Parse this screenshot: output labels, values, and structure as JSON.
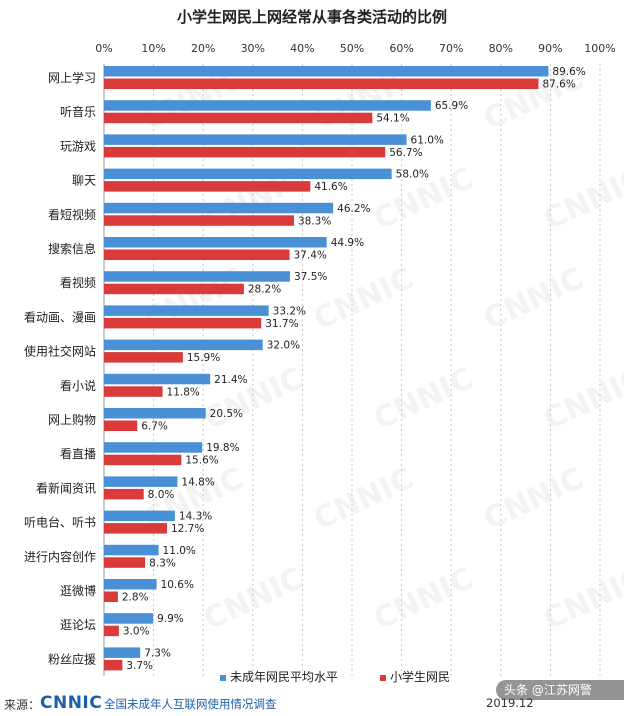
{
  "chart_data": {
    "type": "bar",
    "orientation": "horizontal",
    "title": "小学生网民上网经常从事各类活动的比例",
    "categories": [
      "网上学习",
      "听音乐",
      "玩游戏",
      "聊天",
      "看短视频",
      "搜索信息",
      "看视频",
      "看动画、漫画",
      "使用社交网站",
      "看小说",
      "网上购物",
      "看直播",
      "看新闻资讯",
      "听电台、听书",
      "进行内容创作",
      "逛微博",
      "逛论坛",
      "粉丝应援"
    ],
    "series": [
      {
        "name": "未成年网民平均水平",
        "color": "#4a90d6",
        "values": [
          89.6,
          65.9,
          61.0,
          58.0,
          46.2,
          44.9,
          37.5,
          33.2,
          32.0,
          21.4,
          20.5,
          19.8,
          14.8,
          14.3,
          11.0,
          10.6,
          9.9,
          7.3
        ]
      },
      {
        "name": "小学生网民",
        "color": "#d93a3a",
        "values": [
          87.6,
          54.1,
          56.7,
          41.6,
          38.3,
          37.4,
          28.2,
          31.7,
          15.9,
          11.8,
          6.7,
          15.6,
          8.0,
          12.7,
          8.3,
          2.8,
          3.0,
          3.7
        ]
      }
    ],
    "xaxis": {
      "ticks": [
        "0%",
        "10%",
        "20%",
        "30%",
        "40%",
        "50%",
        "60%",
        "70%",
        "80%",
        "90%",
        "100%"
      ],
      "range": [
        0,
        100
      ],
      "position": "top"
    },
    "grid": true,
    "legend_position": "bottom"
  },
  "watermark": "CNNIC",
  "footer": {
    "source_label": "来源：",
    "logo": "CNNIC",
    "survey": "全国未成年人互联网使用情况调查",
    "date": "2019.12",
    "credit": "头条 @江苏网警"
  }
}
